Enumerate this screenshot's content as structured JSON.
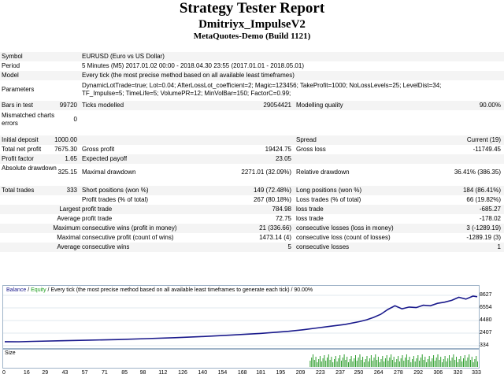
{
  "header": {
    "title": "Strategy Tester Report",
    "expert": "Dmitriyx_ImpulseV2",
    "server": "MetaQuotes-Demo (Build 1121)"
  },
  "info": {
    "symbol_label": "Symbol",
    "symbol_value": "EURUSD (Euro vs US Dollar)",
    "period_label": "Period",
    "period_value": "5 Minutes (M5) 2017.01.02 00:00 - 2018.04.30 23:55 (2017.01.01 - 2018.05.01)",
    "model_label": "Model",
    "model_value": "Every tick (the most precise method based on all available least timeframes)",
    "params_label": "Parameters",
    "params_line1": "DynamicLotTrade=true; Lot=0.04; AfterLossLot_coefficient=2; Magic=123456; TakeProfit=1000; NoLossLevels=25; LevelDist=34;",
    "params_line2": "TF_Impulse=5; TimeLife=5; VolumePR=12; MinVolBar=150; FactorC=0.99;",
    "bars_label": "Bars in test",
    "bars_value": "99720",
    "ticks_label": "Ticks modelled",
    "ticks_value": "29054421",
    "mq_label": "Modelling quality",
    "mq_value": "90.00%",
    "mismatch_label": "Mismatched charts errors",
    "mismatch_value": "0"
  },
  "results": {
    "deposit_label": "Initial deposit",
    "deposit_value": "1000.00",
    "spread_label": "Spread",
    "spread_value": "Current (19)",
    "netprofit_label": "Total net profit",
    "netprofit_value": "7675.30",
    "grossprofit_label": "Gross profit",
    "grossprofit_value": "19424.75",
    "grossloss_label": "Gross loss",
    "grossloss_value": "-11749.45",
    "pf_label": "Profit factor",
    "pf_value": "1.65",
    "ep_label": "Expected payoff",
    "ep_value": "23.05",
    "absdd_label": "Absolute drawdown",
    "absdd_value": "325.15",
    "maxdd_label": "Maximal drawdown",
    "maxdd_value": "2271.01 (32.09%)",
    "reldd_label": "Relative drawdown",
    "reldd_value": "36.41% (386.35)",
    "trades_label": "Total trades",
    "trades_value": "333",
    "short_label": "Short positions (won %)",
    "short_value": "149 (72.48%)",
    "long_label": "Long positions (won %)",
    "long_value": "184 (86.41%)",
    "pt_label": "Profit trades (% of total)",
    "pt_value": "267 (80.18%)",
    "lt_label": "Loss trades (% of total)",
    "lt_value": "66 (19.82%)",
    "largest_label": "Largest",
    "largest_profit_label": "profit trade",
    "largest_profit_value": "784.98",
    "largest_loss_label": "loss trade",
    "largest_loss_value": "-685.27",
    "average_label": "Average",
    "average_profit_label": "profit trade",
    "average_profit_value": "72.75",
    "average_loss_label": "loss trade",
    "average_loss_value": "-178.02",
    "maximum_label": "Maximum",
    "max_wins_label": "consecutive wins (profit in money)",
    "max_wins_value": "21 (336.66)",
    "max_losses_label": "consecutive losses (loss in money)",
    "max_losses_value": "3 (-1289.19)",
    "maximal_label": "Maximal",
    "maxl_wins_label": "consecutive profit (count of wins)",
    "maxl_wins_value": "1473.14 (4)",
    "maxl_losses_label": "consecutive loss (count of losses)",
    "maxl_losses_value": "-1289.19 (3)",
    "avgc_label": "Average",
    "avgc_wins_label": "consecutive wins",
    "avgc_wins_value": "5",
    "avgc_losses_label": "consecutive losses",
    "avgc_losses_value": "1"
  },
  "chart": {
    "legend_balance": "Balance",
    "legend_sep1": " / ",
    "legend_equity": "Equity",
    "legend_rest": " / Every tick (the most precise method based on all available least timeframes to generate each tick) / 90.00%",
    "size_label": "Size",
    "balance_color": "#1a1a8c",
    "equity_color": "#1a9c1a",
    "size_color": "#2e9e2e"
  },
  "chart_data": {
    "type": "line",
    "ylabels": [
      "8627",
      "6554",
      "4480",
      "2407",
      "334"
    ],
    "yticks": [
      8627,
      6554,
      4480,
      2407,
      334
    ],
    "ylim": [
      334,
      8627
    ],
    "xlim": [
      0,
      333
    ],
    "xlabels": [
      "0",
      "16",
      "29",
      "43",
      "57",
      "71",
      "85",
      "98",
      "112",
      "126",
      "140",
      "154",
      "168",
      "181",
      "195",
      "209",
      "223",
      "237",
      "250",
      "264",
      "278",
      "292",
      "306",
      "320",
      "333"
    ],
    "series": [
      {
        "name": "Balance",
        "x": [
          0,
          10,
          20,
          40,
          60,
          80,
          100,
          120,
          140,
          160,
          180,
          200,
          210,
          220,
          230,
          240,
          250,
          255,
          260,
          265,
          270,
          275,
          280,
          285,
          290,
          295,
          300,
          305,
          310,
          315,
          320,
          325,
          330,
          333
        ],
        "y": [
          1000,
          980,
          1050,
          1150,
          1250,
          1350,
          1500,
          1650,
          1850,
          2100,
          2350,
          2700,
          2950,
          3250,
          3550,
          3850,
          4300,
          4600,
          5000,
          5500,
          6300,
          6900,
          6400,
          6700,
          6600,
          7000,
          6900,
          7300,
          7500,
          7800,
          8300,
          8000,
          8500,
          8400
        ]
      }
    ],
    "size_bars_start": 215,
    "size_bars_end": 333
  }
}
